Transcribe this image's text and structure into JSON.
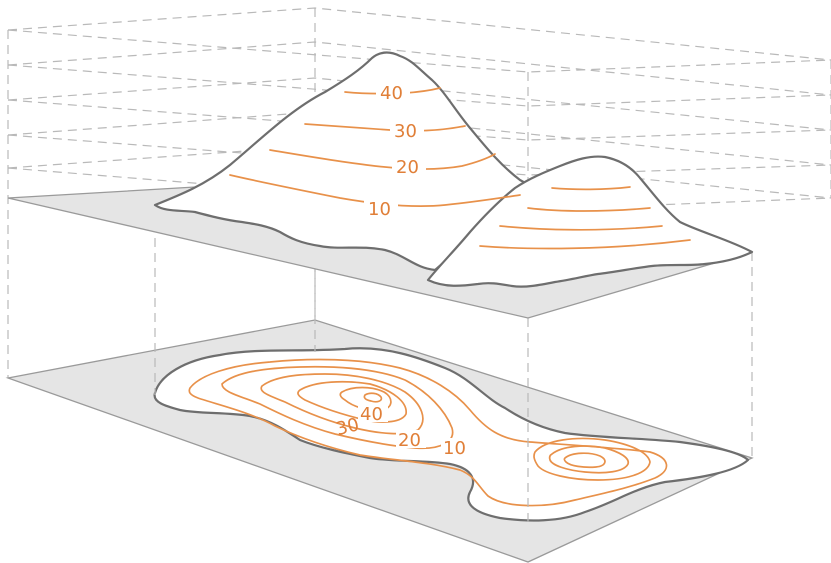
{
  "upper_labels": {
    "c10": "10",
    "c20": "20",
    "c30": "30",
    "c40": "40"
  },
  "lower_labels": {
    "c10": "10",
    "c20": "20",
    "c30": "30",
    "c40": "40"
  },
  "colors": {
    "contour": "#e8914a",
    "label": "#e07f38",
    "plane": "#e5e5e5",
    "outline": "#6e6e6e",
    "guide": "#b9b9b9"
  }
}
